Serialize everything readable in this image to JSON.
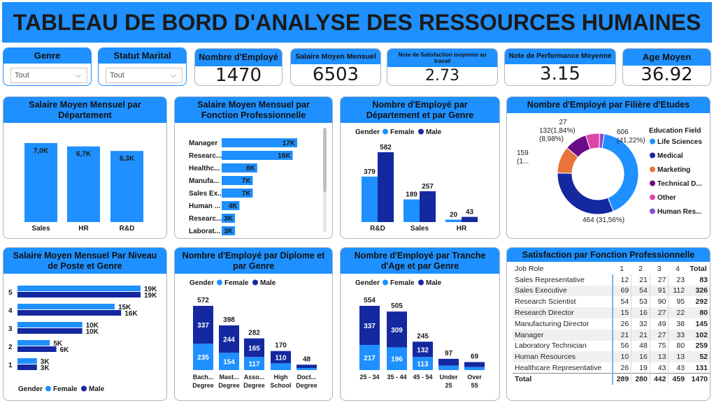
{
  "title": "TABLEAU DE BORD D'ANALYSE DES RESSOURCES HUMAINES",
  "slicers": [
    {
      "label": "Genre",
      "value": "Tout"
    },
    {
      "label": "Statut Marital",
      "value": "Tout"
    }
  ],
  "kpis": [
    {
      "label": "Nombre d'Employé",
      "value": "1470"
    },
    {
      "label": "Salaire Moyen Mensuel",
      "value": "6503"
    },
    {
      "label": "Note de Satisfaction moyenne au travail",
      "value": "2.73"
    },
    {
      "label": "Note de Performance Moyenne",
      "value": "3.15"
    },
    {
      "label": "Age Moyen",
      "value": "36.92"
    }
  ],
  "colors": {
    "primary": "#1e90ff",
    "dark": "#1428a0",
    "orange": "#e8743b",
    "purple": "#6b0a8a",
    "pink": "#e044a7",
    "violet": "#8a4dd6"
  },
  "legend": {
    "title": "Gender",
    "female": "Female",
    "male": "Male"
  },
  "chart_data": [
    {
      "id": "salary_by_dept",
      "type": "bar",
      "title": "Salaire Moyen Mensuel par Département",
      "categories": [
        "Sales",
        "HR",
        "R&D"
      ],
      "values": [
        7.0,
        6.7,
        6.3
      ],
      "labels": [
        "7,0K",
        "6,7K",
        "6,3K"
      ]
    },
    {
      "id": "salary_by_role",
      "type": "bar",
      "title": "Salaire Moyen Mensuel par Fonction Professionnelle",
      "categories": [
        "Manager",
        "Researc...",
        "Healthc...",
        "Manufa...",
        "Sales Ex...",
        "Human ...",
        "Researc...",
        "Laborat..."
      ],
      "values": [
        17,
        16,
        8,
        7,
        7,
        4,
        3,
        3
      ],
      "labels": [
        "17K",
        "16K",
        "8K",
        "7K",
        "7K",
        "4K",
        "3K",
        "3K"
      ]
    },
    {
      "id": "emp_by_dept_gender",
      "type": "bar",
      "title": "Nombre d'Employé par Département et par Genre",
      "categories": [
        "R&D",
        "Sales",
        "HR"
      ],
      "series": [
        {
          "name": "Female",
          "values": [
            379,
            189,
            20
          ]
        },
        {
          "name": "Male",
          "values": [
            582,
            257,
            43
          ]
        }
      ]
    },
    {
      "id": "emp_by_field",
      "type": "pie",
      "title": "Nombre d'Employé par Filière d'Etudes",
      "legend_title": "Education Field",
      "categories": [
        "Life Sciences",
        "Medical",
        "Marketing",
        "Technical D...",
        "Other",
        "Human Res..."
      ],
      "values": [
        606,
        464,
        159,
        132,
        82,
        27
      ],
      "labels": [
        "606\n(41,22%)",
        "464 (31,56%)",
        "159\n(1...",
        "132(1,84%)\n(8,98%)",
        "",
        "27"
      ]
    },
    {
      "id": "salary_by_level_gender",
      "type": "bar",
      "title": "Salaire Moyen Mensuel Par Niveau de Poste et Genre",
      "categories": [
        "5",
        "4",
        "3",
        "2",
        "1"
      ],
      "series": [
        {
          "name": "Female",
          "values": [
            19,
            15,
            10,
            5,
            3
          ],
          "labels": [
            "19K",
            "15K",
            "10K",
            "5K",
            "3K"
          ]
        },
        {
          "name": "Male",
          "values": [
            19,
            16,
            10,
            6,
            3
          ],
          "labels": [
            "19K",
            "16K",
            "10K",
            "6K",
            "3K"
          ]
        }
      ]
    },
    {
      "id": "emp_by_degree_gender",
      "type": "bar",
      "title": "Nombre d'Employé par Diplome et par Genre",
      "categories": [
        "Bach... Degree",
        "Mast... Degree",
        "Asso... Degree",
        "High School",
        "Doct... Degree"
      ],
      "totals": [
        572,
        398,
        282,
        170,
        48
      ],
      "series": [
        {
          "name": "Female",
          "values": [
            235,
            154,
            117,
            60,
            18
          ]
        },
        {
          "name": "Male",
          "values": [
            337,
            244,
            165,
            110,
            30
          ]
        }
      ]
    },
    {
      "id": "emp_by_age_gender",
      "type": "bar",
      "title": "Nombre d'Employé par Tranche d'Age et par Genre",
      "categories": [
        "25 - 34",
        "35 - 44",
        "45 - 54",
        "Under 25",
        "Over 55"
      ],
      "totals": [
        554,
        505,
        245,
        97,
        69
      ],
      "series": [
        {
          "name": "Female",
          "values": [
            217,
            196,
            113,
            38,
            26
          ]
        },
        {
          "name": "Male",
          "values": [
            337,
            309,
            132,
            59,
            43
          ]
        }
      ]
    }
  ],
  "matrix": {
    "title": "Satisfaction par Fonction Professionnelle",
    "columns": [
      "Job Role",
      "1",
      "2",
      "3",
      "4",
      "Total"
    ],
    "rows": [
      [
        "Sales Representative",
        "12",
        "21",
        "27",
        "23",
        "83"
      ],
      [
        "Sales Executive",
        "69",
        "54",
        "91",
        "112",
        "326"
      ],
      [
        "Research Scientist",
        "54",
        "53",
        "90",
        "95",
        "292"
      ],
      [
        "Research Director",
        "15",
        "16",
        "27",
        "22",
        "80"
      ],
      [
        "Manufacturing Director",
        "26",
        "32",
        "49",
        "38",
        "145"
      ],
      [
        "Manager",
        "21",
        "21",
        "27",
        "33",
        "102"
      ],
      [
        "Laboratory Technician",
        "56",
        "48",
        "75",
        "80",
        "259"
      ],
      [
        "Human Resources",
        "10",
        "16",
        "13",
        "13",
        "52"
      ],
      [
        "Healthcare Representative",
        "26",
        "19",
        "43",
        "43",
        "131"
      ]
    ],
    "total": [
      "Total",
      "289",
      "280",
      "442",
      "459",
      "1470"
    ]
  }
}
